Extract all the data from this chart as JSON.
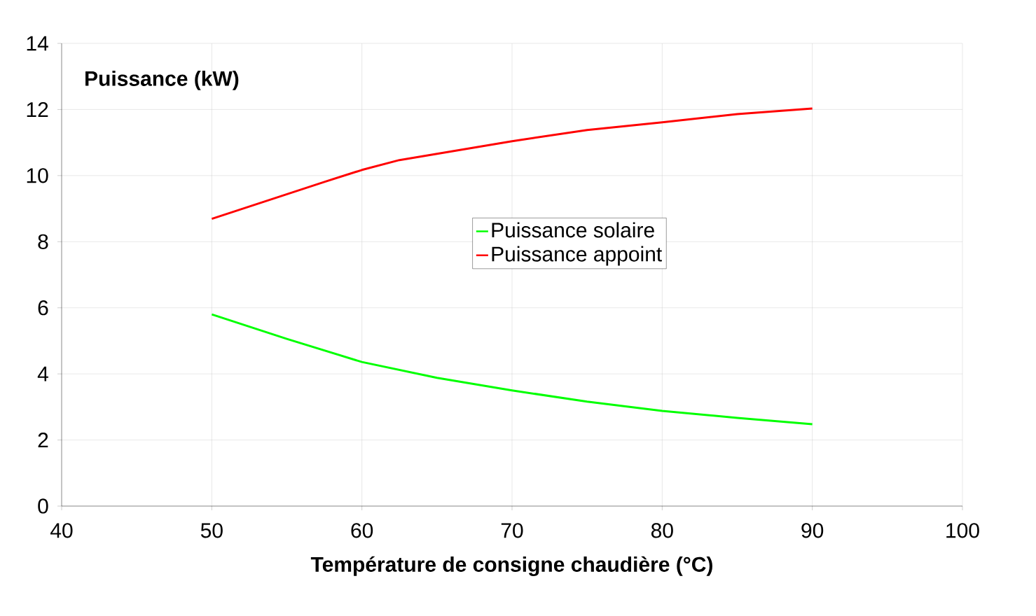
{
  "chart_data": {
    "type": "line",
    "xlabel": "Température de consigne chaudière (°C)",
    "ylabel": "Puissance (kW)",
    "xlim": [
      40,
      100
    ],
    "xticks": [
      40,
      50,
      60,
      70,
      80,
      90,
      100
    ],
    "ylim": [
      0,
      14
    ],
    "yticks": [
      0,
      2,
      4,
      6,
      8,
      10,
      12,
      14
    ],
    "grid": true,
    "legend": "center",
    "marker": "none",
    "line_style": "solid",
    "series": [
      {
        "name": "Puissance solaire",
        "color": "#00ff00",
        "x": [
          50,
          55,
          60,
          65,
          70,
          75,
          80,
          85,
          90
        ],
        "values": [
          5.8,
          5.06,
          4.36,
          3.88,
          3.5,
          3.16,
          2.88,
          2.67,
          2.48
        ]
      },
      {
        "name": "Puissance appoint",
        "color": "#ff0000",
        "x": [
          50,
          57.5,
          60,
          62.5,
          70,
          75,
          80,
          85,
          90
        ],
        "values": [
          8.69,
          9.81,
          10.17,
          10.47,
          11.04,
          11.38,
          11.61,
          11.86,
          12.03
        ]
      }
    ]
  }
}
